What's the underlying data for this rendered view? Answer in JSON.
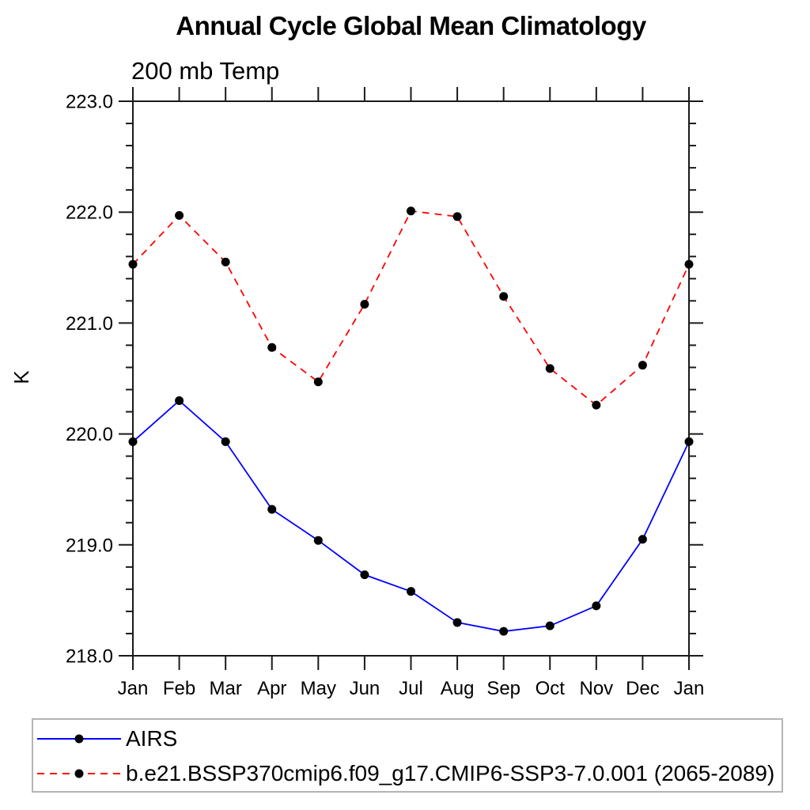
{
  "chart_data": {
    "type": "line",
    "title": "Annual Cycle Global Mean Climatology",
    "subtitle": "200 mb Temp",
    "ylabel": "K",
    "xlabel": "",
    "ylim": [
      218.0,
      223.0
    ],
    "ytick_major": 1.0,
    "ytick_minor": 0.2,
    "ytick_labels": [
      "218.0",
      "219.0",
      "220.0",
      "221.0",
      "222.0",
      "223.0"
    ],
    "grid": false,
    "legend_position": "bottom-left-box",
    "categories": [
      "Jan",
      "Feb",
      "Mar",
      "Apr",
      "May",
      "Jun",
      "Jul",
      "Aug",
      "Sep",
      "Oct",
      "Nov",
      "Dec",
      "Jan"
    ],
    "series": [
      {
        "name": "AIRS",
        "color": "#0000ff",
        "style": "solid",
        "marker": "filled-circle",
        "marker_color": "#000000",
        "values": [
          219.93,
          220.3,
          219.93,
          219.32,
          219.04,
          218.73,
          218.58,
          218.3,
          218.22,
          218.27,
          218.45,
          219.05,
          219.93
        ]
      },
      {
        "name": "b.e21.BSSP370cmip6.f09_g17.CMIP6-SSP3-7.0.001 (2065-2089)",
        "color": "#ff0000",
        "style": "dashed",
        "marker": "filled-circle",
        "marker_color": "#000000",
        "values": [
          221.53,
          221.97,
          221.55,
          220.78,
          220.47,
          221.17,
          222.01,
          221.96,
          221.24,
          220.59,
          220.26,
          220.62,
          221.53
        ]
      }
    ]
  },
  "colors": {
    "axis": "#1a1a1a",
    "text": "#000000",
    "legend_border": "#b4b4b4",
    "background": "#ffffff"
  }
}
